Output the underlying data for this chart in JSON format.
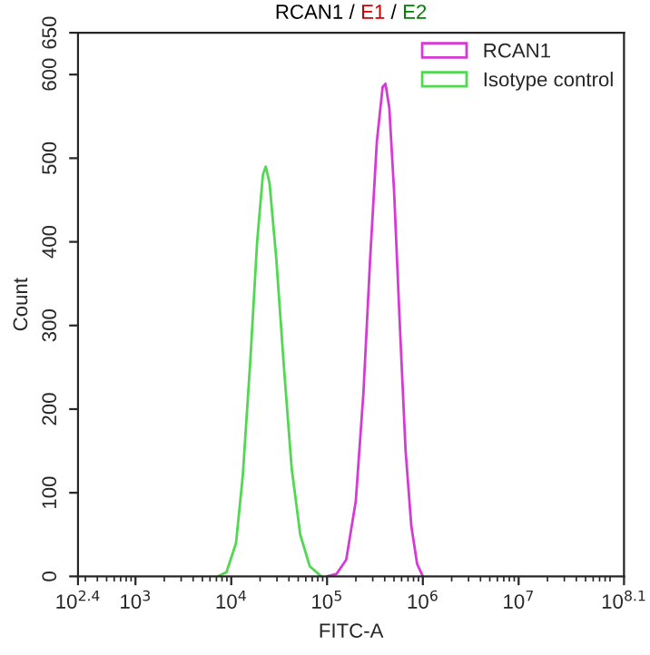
{
  "chart_data": {
    "type": "line",
    "title": "RCAN1 / E1 / E2",
    "xlabel": "FITC-A",
    "ylabel": "Count",
    "log": "x",
    "xlim": [
      251.19,
      125892541
    ],
    "xticks": [
      {
        "value": 251.19,
        "label": "10$^{2.4}$"
      },
      {
        "value": 1000,
        "label": "10$^{3}$"
      },
      {
        "value": 10000,
        "label": "10$^{4}$"
      },
      {
        "value": 100000,
        "label": "10$^{5}$"
      },
      {
        "value": 1000000,
        "label": "10$^{6}$"
      },
      {
        "value": 10000000,
        "label": "10$^{7}$"
      },
      {
        "value": 125892541,
        "label": "10$^{8.1}$"
      }
    ],
    "ylim": [
      0,
      650
    ],
    "yticks": [
      0,
      100,
      200,
      300,
      400,
      500,
      600,
      650
    ],
    "grid": false,
    "legend": "top right",
    "series": [
      {
        "name": "RCAN1",
        "color": "#d63ad6",
        "x": [
          100000,
          125900,
          158500,
          199500,
          239900,
          281800,
          331100,
          380200,
          407400,
          446700,
          501200,
          575400,
          660700,
          758600,
          871000,
          1000000
        ],
        "values": [
          0,
          3,
          20,
          90,
          220,
          380,
          520,
          585,
          589,
          560,
          460,
          300,
          150,
          60,
          15,
          0
        ]
      },
      {
        "name": "Isotype control",
        "color": "#50d850",
        "x": [
          7244,
          8913,
          11220,
          13180,
          15850,
          18620,
          21380,
          22910,
          25120,
          29510,
          35480,
          42660,
          52480,
          66070,
          87100
        ],
        "values": [
          0,
          5,
          40,
          120,
          260,
          400,
          480,
          490,
          470,
          380,
          250,
          130,
          50,
          12,
          0
        ]
      }
    ]
  }
}
